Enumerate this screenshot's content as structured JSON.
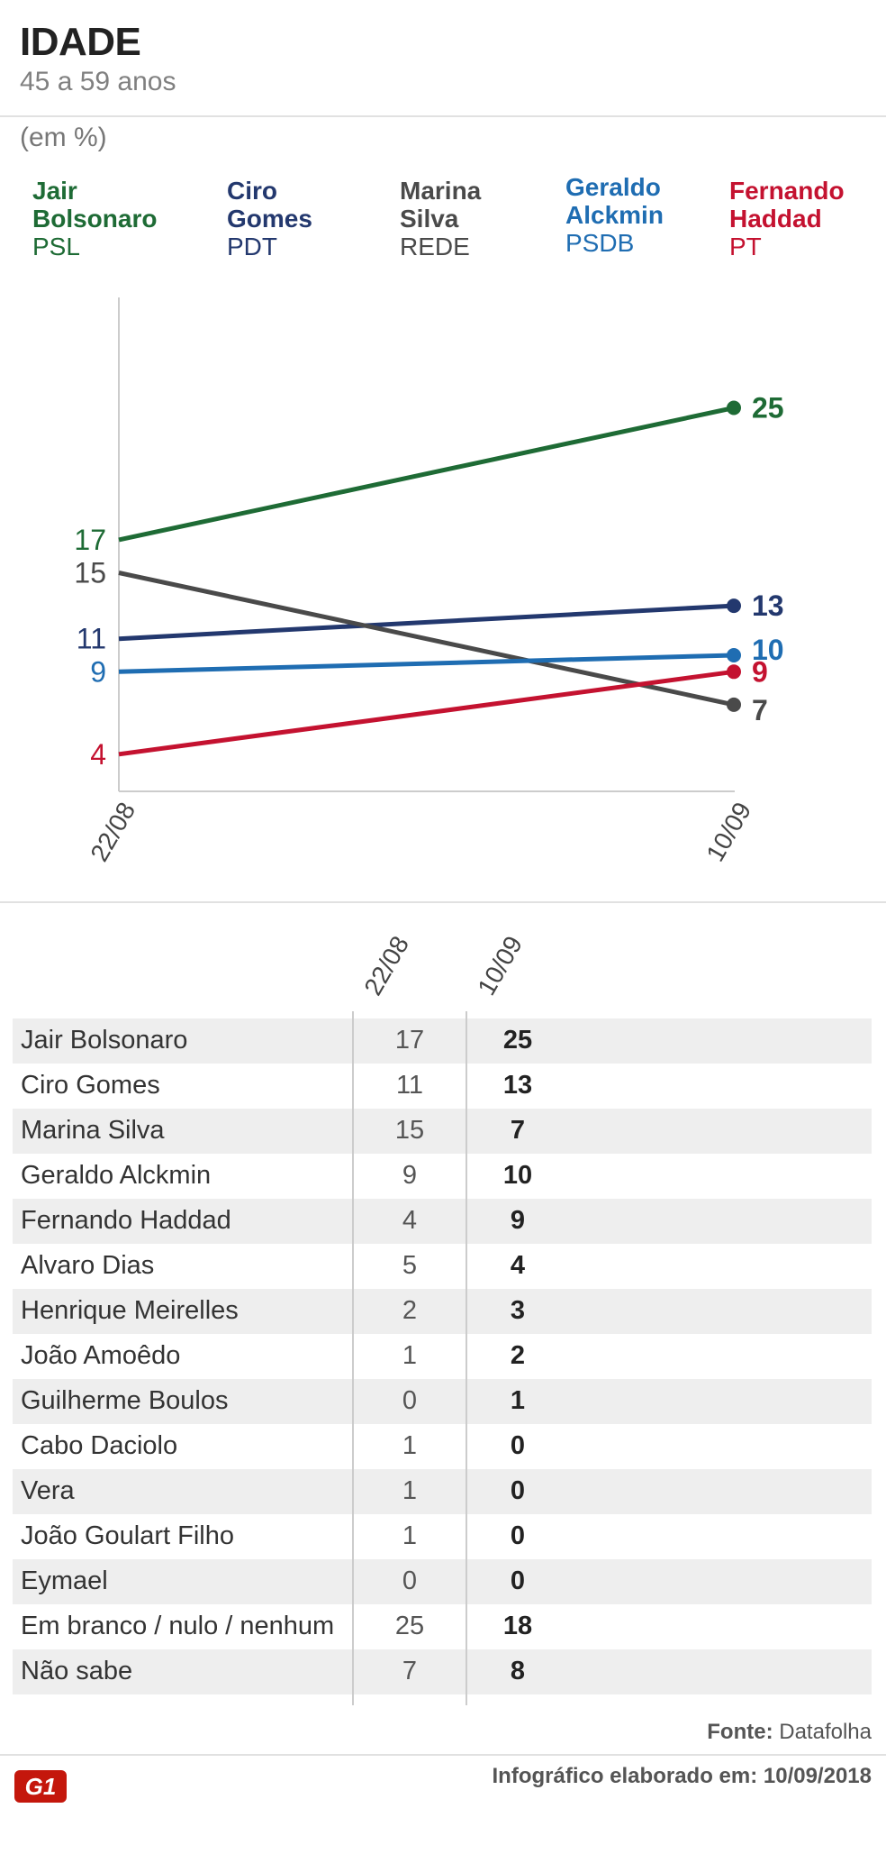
{
  "header": {
    "title": "IDADE",
    "subtitle": "45 a 59 anos",
    "unit": "(em %)"
  },
  "legend": [
    {
      "name_line1": "Jair",
      "name_line2": "Bolsonaro",
      "party": "PSL",
      "color": "#1e6b35"
    },
    {
      "name_line1": "Ciro",
      "name_line2": "Gomes",
      "party": "PDT",
      "color": "#23386e"
    },
    {
      "name_line1": "Marina",
      "name_line2": "Silva",
      "party": "REDE",
      "color": "#4a4a4a"
    },
    {
      "name_line1": "Geraldo",
      "name_line2": "Alckmin",
      "party": "PSDB",
      "color": "#1f6db2"
    },
    {
      "name_line1": "Fernando",
      "name_line2": "Haddad",
      "party": "PT",
      "color": "#c41230"
    }
  ],
  "chart_data": {
    "type": "line",
    "x": [
      "22/08",
      "10/09"
    ],
    "series": [
      {
        "name": "Jair Bolsonaro",
        "values": [
          17,
          25
        ],
        "color": "#1e6b35"
      },
      {
        "name": "Ciro Gomes",
        "values": [
          11,
          13
        ],
        "color": "#23386e"
      },
      {
        "name": "Marina Silva",
        "values": [
          15,
          7
        ],
        "color": "#4a4a4a"
      },
      {
        "name": "Geraldo Alckmin",
        "values": [
          9,
          10
        ],
        "color": "#1f6db2"
      },
      {
        "name": "Fernando Haddad",
        "values": [
          4,
          9
        ],
        "color": "#c41230"
      }
    ],
    "grid": false
  },
  "table": {
    "col_headers": [
      "22/08",
      "10/09"
    ],
    "rows": [
      {
        "name": "Jair Bolsonaro",
        "v1": "17",
        "v2": "25"
      },
      {
        "name": "Ciro Gomes",
        "v1": "11",
        "v2": "13"
      },
      {
        "name": "Marina Silva",
        "v1": "15",
        "v2": "7"
      },
      {
        "name": "Geraldo Alckmin",
        "v1": "9",
        "v2": "10"
      },
      {
        "name": "Fernando Haddad",
        "v1": "4",
        "v2": "9"
      },
      {
        "name": "Alvaro Dias",
        "v1": "5",
        "v2": "4"
      },
      {
        "name": "Henrique Meirelles",
        "v1": "2",
        "v2": "3"
      },
      {
        "name": "João Amoêdo",
        "v1": "1",
        "v2": "2"
      },
      {
        "name": "Guilherme Boulos",
        "v1": "0",
        "v2": "1"
      },
      {
        "name": "Cabo Daciolo",
        "v1": "1",
        "v2": "0"
      },
      {
        "name": "Vera",
        "v1": "1",
        "v2": "0"
      },
      {
        "name": "João Goulart Filho",
        "v1": "1",
        "v2": "0"
      },
      {
        "name": "Eymael",
        "v1": "0",
        "v2": "0"
      },
      {
        "name": "Em branco / nulo / nenhum",
        "v1": "25",
        "v2": "18"
      },
      {
        "name": "Não sabe",
        "v1": "7",
        "v2": "8"
      }
    ]
  },
  "footer": {
    "source_label": "Fonte:",
    "source_value": "Datafolha",
    "credit_label": "Infográfico elaborado em:",
    "credit_value": "10/09/2018",
    "logo_text": "G1",
    "logo_color": "#c4170c"
  }
}
